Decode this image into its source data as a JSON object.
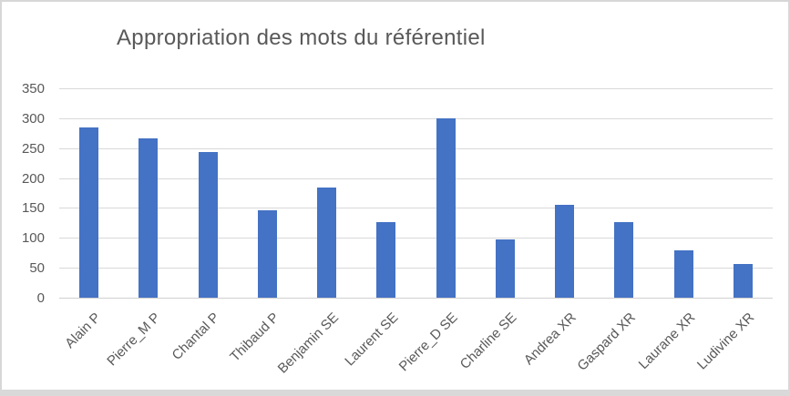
{
  "chart_data": {
    "type": "bar",
    "title": "Appropriation des mots du référentiel",
    "categories": [
      "Alain P",
      "Pierre_M P",
      "Chantal P",
      "Thibaud P",
      "Benjamin SE",
      "Laurent SE",
      "Pierre_D SE",
      "Charline SE",
      "Andrea XR",
      "Gaspard XR",
      "Laurane XR",
      "Ludivine XR"
    ],
    "values": [
      284,
      267,
      244,
      146,
      184,
      126,
      300,
      97,
      155,
      126,
      79,
      56
    ],
    "xlabel": "",
    "ylabel": "",
    "yticks": [
      0,
      50,
      100,
      150,
      200,
      250,
      300,
      350
    ],
    "ylim": [
      0,
      350
    ],
    "grid": true,
    "legend": false,
    "bar_color": "#4472C4",
    "text_color": "#595959",
    "gridline_color": "#D9D9D9"
  }
}
